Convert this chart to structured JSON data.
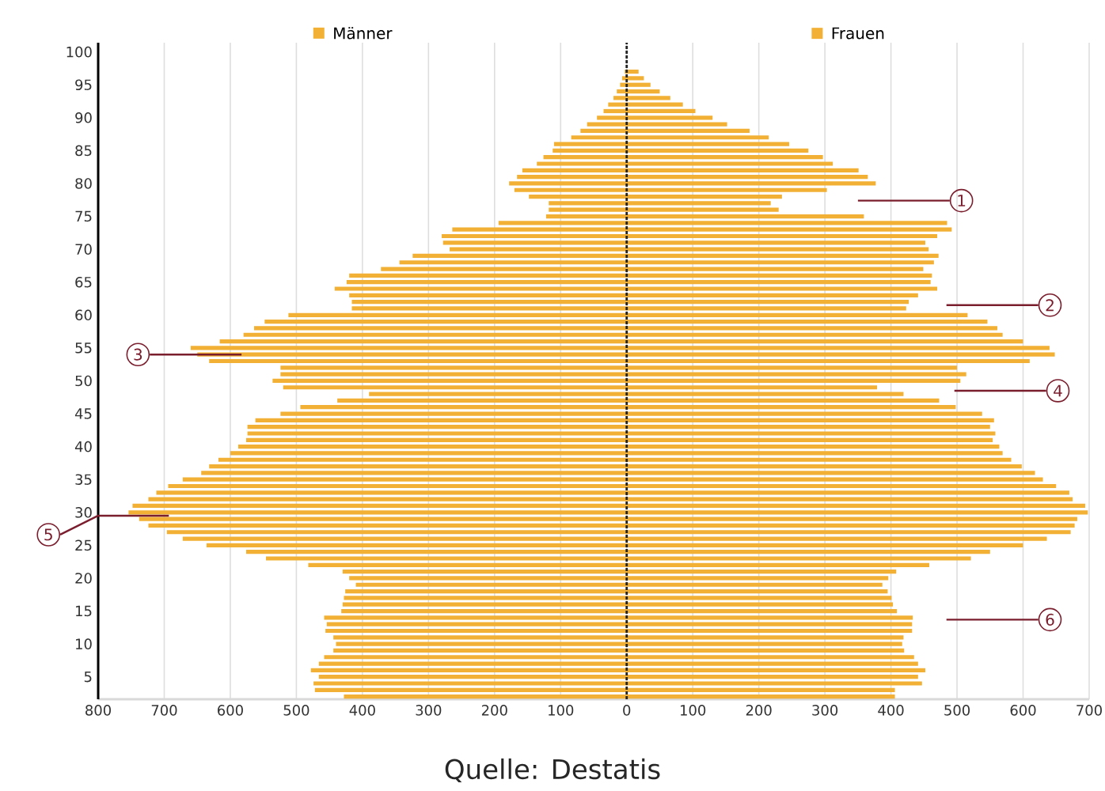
{
  "chart_data": {
    "type": "bar",
    "orientation": "horizontal",
    "x": [
      2,
      3,
      4,
      5,
      6,
      7,
      8,
      9,
      10,
      11,
      12,
      13,
      14,
      15,
      16,
      17,
      18,
      19,
      20,
      21,
      22,
      23,
      24,
      25,
      26,
      27,
      28,
      29,
      30,
      31,
      32,
      33,
      34,
      35,
      36,
      37,
      38,
      39,
      40,
      41,
      42,
      43,
      44,
      45,
      46,
      47,
      48,
      49,
      50,
      51,
      52,
      53,
      54,
      55,
      56,
      57,
      58,
      59,
      60,
      61,
      62,
      63,
      64,
      65,
      66,
      67,
      68,
      69,
      70,
      71,
      72,
      73,
      74,
      75,
      76,
      77,
      78,
      79,
      80,
      81,
      82,
      83,
      84,
      85,
      86,
      87,
      88,
      89,
      90,
      91,
      92,
      93,
      94,
      95,
      96,
      97
    ],
    "series": [
      {
        "name": "Männer",
        "color": "#f2b134",
        "values": [
          -428,
          -472,
          -474,
          -466,
          -478,
          -466,
          -458,
          -444,
          -440,
          -444,
          -456,
          -454,
          -458,
          -432,
          -430,
          -428,
          -426,
          -410,
          -420,
          -430,
          -482,
          -546,
          -576,
          -636,
          -672,
          -696,
          -724,
          -738,
          -754,
          -748,
          -724,
          -712,
          -694,
          -672,
          -644,
          -632,
          -618,
          -600,
          -588,
          -576,
          -574,
          -574,
          -562,
          -524,
          -494,
          -438,
          -390,
          -520,
          -536,
          -524,
          -524,
          -632,
          -650,
          -660,
          -616,
          -580,
          -564,
          -548,
          -512,
          -416,
          -416,
          -420,
          -442,
          -424,
          -420,
          -372,
          -344,
          -324,
          -268,
          -278,
          -280,
          -264,
          -194,
          -122,
          -118,
          -118,
          -148,
          -170,
          -178,
          -166,
          -158,
          -136,
          -126,
          -112,
          -110,
          -84,
          -70,
          -60,
          -45,
          -35,
          -28,
          -20,
          -15,
          -10,
          -7,
          -3
        ]
      },
      {
        "name": "Frauen",
        "color": "#f2b134",
        "values": [
          406,
          406,
          447,
          441,
          452,
          441,
          435,
          420,
          417,
          419,
          432,
          432,
          433,
          409,
          403,
          401,
          395,
          387,
          396,
          408,
          458,
          521,
          550,
          600,
          636,
          672,
          678,
          682,
          698,
          694,
          675,
          670,
          650,
          630,
          618,
          598,
          582,
          569,
          564,
          554,
          558,
          550,
          556,
          538,
          498,
          473,
          419,
          379,
          505,
          514,
          500,
          610,
          648,
          640,
          600,
          569,
          561,
          546,
          516,
          423,
          427,
          441,
          470,
          460,
          462,
          449,
          465,
          472,
          457,
          452,
          470,
          492,
          485,
          359,
          230,
          218,
          235,
          303,
          377,
          365,
          351,
          312,
          297,
          275,
          246,
          215,
          186,
          152,
          130,
          104,
          85,
          66,
          50,
          36,
          26,
          18
        ]
      }
    ],
    "xlim": [
      -800,
      700
    ],
    "xticks": [
      {
        "value": -800,
        "label": "800"
      },
      {
        "value": -700,
        "label": "700"
      },
      {
        "value": -600,
        "label": "600"
      },
      {
        "value": -500,
        "label": "500"
      },
      {
        "value": -400,
        "label": "400"
      },
      {
        "value": -300,
        "label": "300"
      },
      {
        "value": -200,
        "label": "200"
      },
      {
        "value": -100,
        "label": "100"
      },
      0,
      100,
      200,
      300,
      400,
      500,
      600,
      700
    ],
    "ylim": [
      1.6,
      101.4
    ],
    "yticks": [
      5,
      10,
      15,
      20,
      25,
      30,
      35,
      40,
      45,
      50,
      55,
      60,
      65,
      70,
      75,
      80,
      85,
      90,
      95,
      100
    ],
    "grid": "x",
    "stacked": true,
    "legend": "top",
    "ref_lines": [
      {
        "axis": "x",
        "value": 0,
        "color": "#222222",
        "line_style": "dashed"
      }
    ],
    "annotations": [
      "1",
      {
        "text": "2",
        "x": 484,
        "y": 61.5
      },
      {
        "text": "3",
        "x": -583,
        "y": 54
      },
      {
        "text": "4",
        "x": 496,
        "y": 48.5
      },
      "5",
      "6",
      "Quelle: Destatis"
    ]
  }
}
